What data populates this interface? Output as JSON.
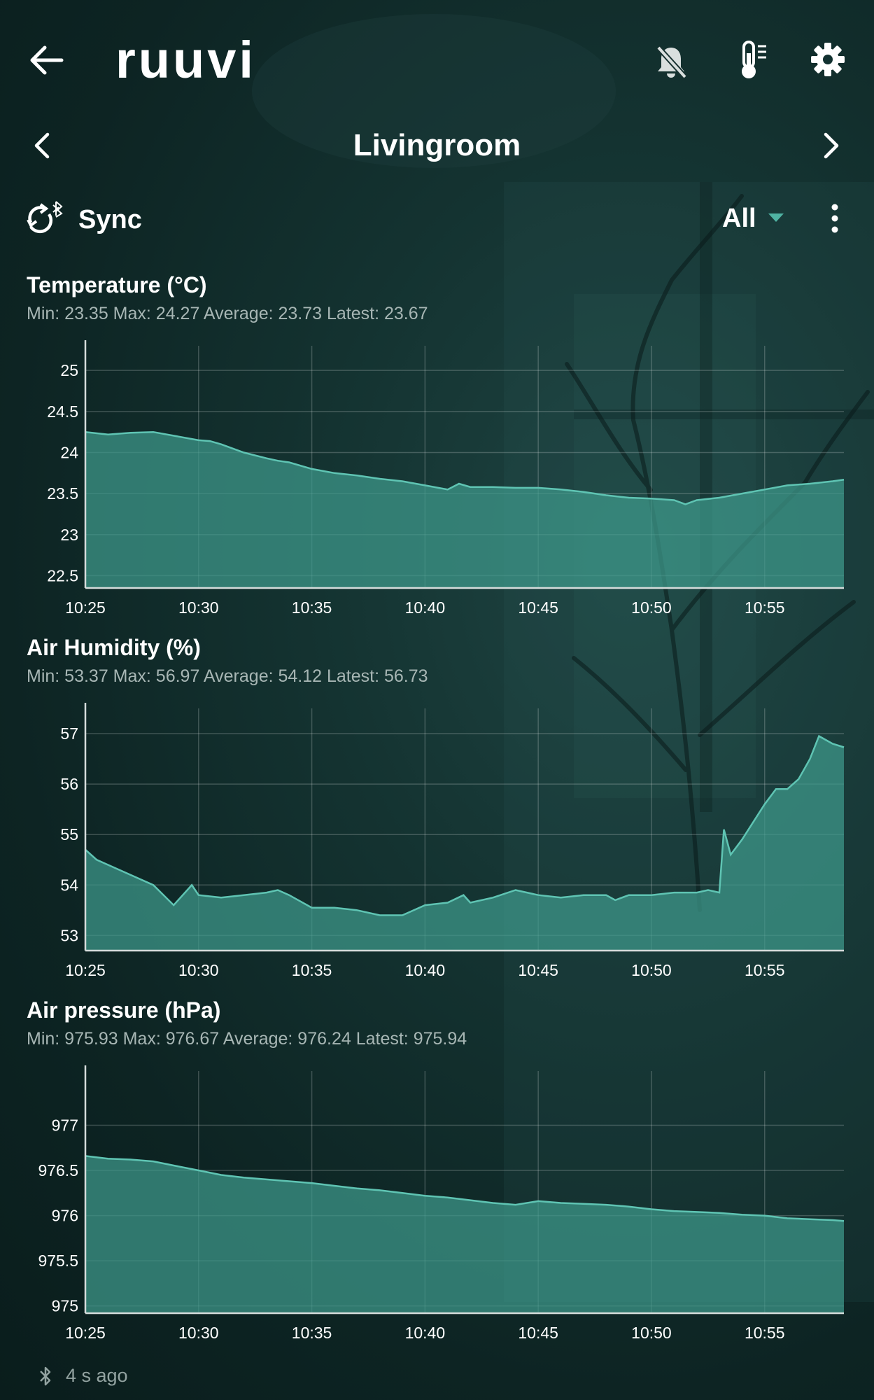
{
  "app": {
    "logo": "ruuvi"
  },
  "header": {
    "back_icon": "arrow-left-icon",
    "alerts_icon": "bell-off-icon",
    "sensor_icon": "thermometer-icon",
    "settings_icon": "gear-icon"
  },
  "sensor": {
    "name": "Livingroom"
  },
  "toolbar": {
    "sync_label": "Sync",
    "filter_label": "All"
  },
  "colors": {
    "accent": "#4fb3a3",
    "fill": "#3f9a8c",
    "text_muted": "#a7b6b4"
  },
  "charts": [
    {
      "title": "Temperature (°C)",
      "stats": "Min: 23.35 Max: 24.27 Average: 23.73 Latest: 23.67",
      "chart_data": {
        "type": "area",
        "ylim": [
          22.35,
          25.3
        ],
        "yticks": [
          22.5,
          23,
          23.5,
          24,
          24.5,
          25
        ],
        "ytick_labels": [
          "22.5",
          "23",
          "23.5",
          "24",
          "24.5",
          "25"
        ],
        "xticks": [
          "10:25",
          "10:30",
          "10:35",
          "10:40",
          "10:45",
          "10:50",
          "10:55"
        ],
        "x": [
          0,
          1,
          2,
          3,
          4,
          5,
          5.5,
          6,
          7,
          8,
          8.5,
          9,
          10,
          11,
          12,
          13,
          14,
          15,
          16,
          16.5,
          17,
          18,
          19,
          20,
          21,
          22,
          23,
          24,
          25,
          26,
          26.5,
          27,
          28,
          29,
          30,
          31,
          32,
          33,
          33.5
        ],
        "y": [
          24.25,
          24.22,
          24.24,
          24.25,
          24.2,
          24.15,
          24.14,
          24.1,
          24.0,
          23.93,
          23.9,
          23.88,
          23.8,
          23.75,
          23.72,
          23.68,
          23.65,
          23.6,
          23.55,
          23.62,
          23.58,
          23.58,
          23.57,
          23.57,
          23.55,
          23.52,
          23.48,
          23.45,
          23.44,
          23.42,
          23.37,
          23.42,
          23.45,
          23.5,
          23.55,
          23.6,
          23.62,
          23.65,
          23.67
        ]
      }
    },
    {
      "title": "Air Humidity (%)",
      "stats": "Min: 53.37 Max: 56.97 Average: 54.12 Latest: 56.73",
      "chart_data": {
        "type": "area",
        "ylim": [
          52.7,
          57.5
        ],
        "yticks": [
          53,
          54,
          55,
          56,
          57
        ],
        "ytick_labels": [
          "53",
          "54",
          "55",
          "56",
          "57"
        ],
        "xticks": [
          "10:25",
          "10:30",
          "10:35",
          "10:40",
          "10:45",
          "10:50",
          "10:55"
        ],
        "x": [
          0,
          0.5,
          1,
          2,
          3,
          3.9,
          4.7,
          5,
          6,
          7,
          8,
          8.5,
          9,
          10,
          11,
          12,
          13,
          14,
          15,
          16,
          16.7,
          17,
          18,
          19,
          20,
          21,
          22,
          23,
          23.4,
          24,
          25,
          26,
          27,
          27.5,
          28,
          28.2,
          28.5,
          29,
          30,
          30.5,
          31,
          31.5,
          32,
          32.4,
          33,
          33.5
        ],
        "y": [
          54.7,
          54.5,
          54.4,
          54.2,
          54.0,
          53.6,
          54.0,
          53.8,
          53.75,
          53.8,
          53.85,
          53.9,
          53.8,
          53.55,
          53.55,
          53.5,
          53.4,
          53.4,
          53.6,
          53.65,
          53.8,
          53.65,
          53.75,
          53.9,
          53.8,
          53.75,
          53.8,
          53.8,
          53.7,
          53.8,
          53.8,
          53.85,
          53.85,
          53.9,
          53.85,
          55.1,
          54.6,
          54.9,
          55.6,
          55.9,
          55.9,
          56.1,
          56.5,
          56.95,
          56.8,
          56.73
        ]
      }
    },
    {
      "title": "Air pressure (hPa)",
      "stats": "Min: 975.93 Max: 976.67 Average: 976.24 Latest: 975.94",
      "chart_data": {
        "type": "area",
        "ylim": [
          974.92,
          977.6
        ],
        "yticks": [
          975,
          975.5,
          976,
          976.5,
          977
        ],
        "ytick_labels": [
          "975",
          "975.5",
          "976",
          "976.5",
          "977"
        ],
        "xticks": [
          "10:25",
          "10:30",
          "10:35",
          "10:40",
          "10:45",
          "10:50",
          "10:55"
        ],
        "x": [
          0,
          1,
          2,
          3,
          4,
          5,
          6,
          7,
          8,
          9,
          10,
          11,
          12,
          13,
          14,
          15,
          16,
          17,
          18,
          19,
          20,
          21,
          22,
          23,
          24,
          25,
          26,
          27,
          28,
          29,
          30,
          31,
          32,
          33,
          33.5
        ],
        "y": [
          976.66,
          976.63,
          976.62,
          976.6,
          976.55,
          976.5,
          976.45,
          976.42,
          976.4,
          976.38,
          976.36,
          976.33,
          976.3,
          976.28,
          976.25,
          976.22,
          976.2,
          976.17,
          976.14,
          976.12,
          976.16,
          976.14,
          976.13,
          976.12,
          976.1,
          976.07,
          976.05,
          976.04,
          976.03,
          976.01,
          976.0,
          975.97,
          975.96,
          975.95,
          975.94
        ]
      }
    }
  ],
  "footer": {
    "bluetooth_icon": "bluetooth-icon",
    "updated_text": "4 s ago"
  }
}
